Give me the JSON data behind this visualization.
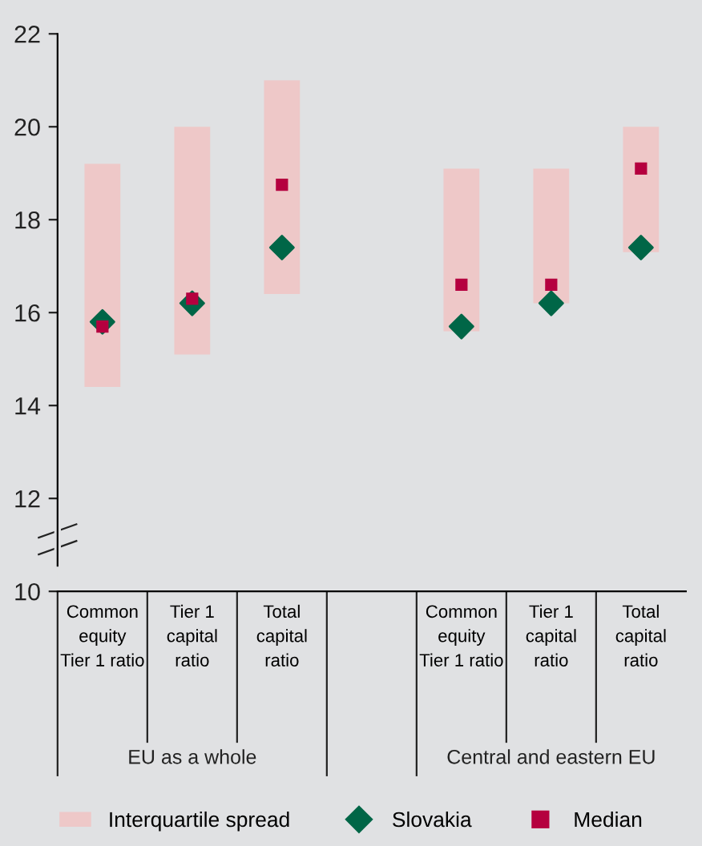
{
  "chart_data": {
    "type": "bar",
    "categories": [
      "Common\nequity\nTier 1 ratio",
      "Tier 1\ncapital\nratio",
      "Total\ncapital\nratio",
      null,
      "Common\nequity\nTier 1 ratio",
      "Tier 1\ncapital\nratio",
      "Total\ncapital\nratio"
    ],
    "series": [
      {
        "name": "Interquartile spread",
        "type": "bar",
        "color": "#eec8c8",
        "base": [
          14.4,
          15.1,
          16.4,
          null,
          15.6,
          16.2,
          17.3
        ],
        "values": [
          4.8,
          4.9,
          4.6,
          null,
          3.5,
          2.9,
          2.7
        ]
      },
      {
        "name": "Slovakia",
        "type": "scatter",
        "marker": "diamond",
        "color": "#006647",
        "values": [
          15.8,
          16.2,
          17.4,
          null,
          15.7,
          16.2,
          17.4
        ]
      },
      {
        "name": "Median",
        "type": "scatter",
        "marker": "square",
        "color": "#b5003f",
        "values": [
          15.7,
          16.3,
          18.75,
          null,
          16.6,
          16.6,
          19.1
        ]
      }
    ],
    "annotations": [
      "EU as a whole",
      "Central and eastern EU"
    ],
    "ylim": [
      10,
      22
    ],
    "yticks": [
      10,
      12,
      14,
      16,
      18,
      20,
      22
    ],
    "grid": false,
    "legend": "bottom"
  }
}
